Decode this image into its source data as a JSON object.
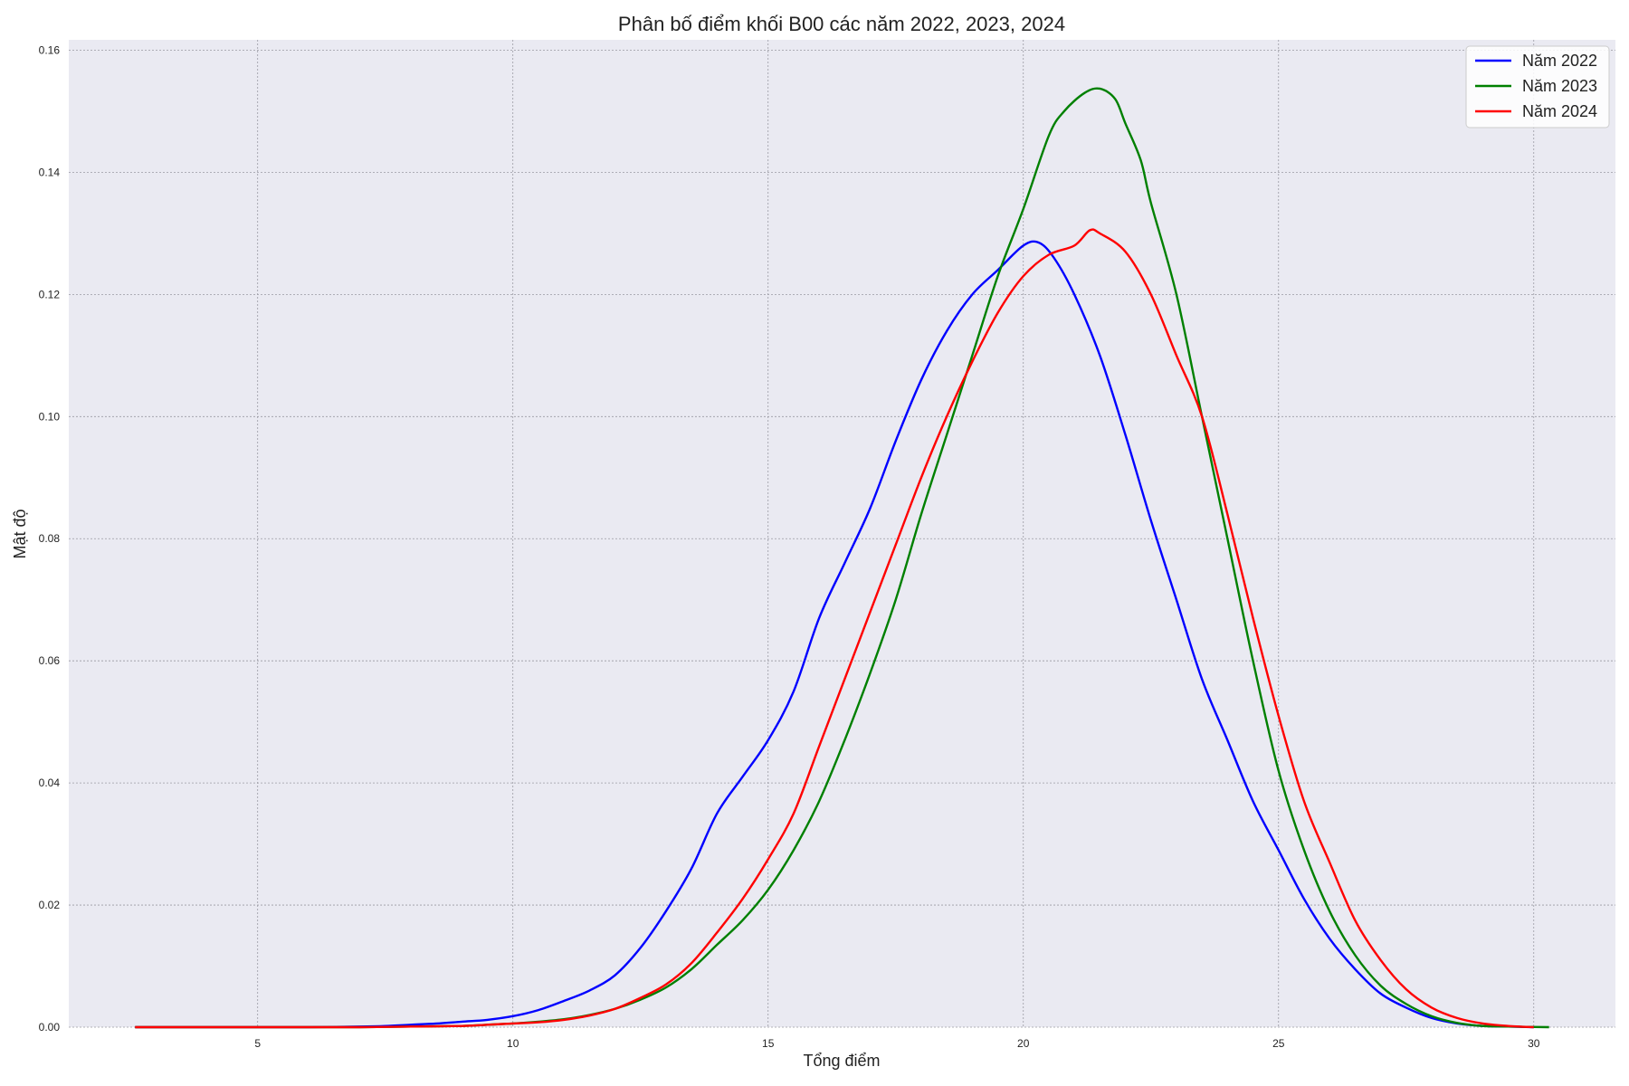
{
  "chart_data": {
    "type": "line",
    "title": "Phân bố điểm khối B00 các năm 2022, 2023, 2024",
    "xlabel": "Tổng điểm",
    "ylabel": "Mật độ",
    "xlim": [
      1.3,
      31.6
    ],
    "ylim": [
      0,
      0.1617
    ],
    "x_ticks": [
      5,
      10,
      15,
      20,
      25,
      30
    ],
    "y_ticks": [
      0.0,
      0.02,
      0.04,
      0.06,
      0.08,
      0.1,
      0.12,
      0.14,
      0.16
    ],
    "x_tick_labels": [
      "5",
      "10",
      "15",
      "20",
      "25",
      "30"
    ],
    "y_tick_labels": [
      "0.00",
      "0.02",
      "0.04",
      "0.06",
      "0.08",
      "0.10",
      "0.12",
      "0.14",
      "0.16"
    ],
    "grid": true,
    "background": "#eaeaf2",
    "legend_position": "top-right",
    "series": [
      {
        "name": "Năm 2022",
        "color": "#0000ff",
        "points": [
          [
            2.6,
            0
          ],
          [
            5,
            0
          ],
          [
            6,
            0
          ],
          [
            7,
            0.0001
          ],
          [
            7.5,
            0.0002
          ],
          [
            8,
            0.0004
          ],
          [
            8.5,
            0.0006
          ],
          [
            9,
            0.0009
          ],
          [
            9.5,
            0.0012
          ],
          [
            10,
            0.0018
          ],
          [
            10.5,
            0.0028
          ],
          [
            11,
            0.0043
          ],
          [
            11.5,
            0.006
          ],
          [
            12,
            0.0085
          ],
          [
            12.5,
            0.013
          ],
          [
            13,
            0.019
          ],
          [
            13.5,
            0.026
          ],
          [
            14,
            0.035
          ],
          [
            14.5,
            0.041
          ],
          [
            15,
            0.047
          ],
          [
            15.5,
            0.055
          ],
          [
            16,
            0.067
          ],
          [
            16.5,
            0.076
          ],
          [
            17,
            0.085
          ],
          [
            17.5,
            0.096
          ],
          [
            18,
            0.106
          ],
          [
            18.5,
            0.114
          ],
          [
            19,
            0.12
          ],
          [
            19.5,
            0.124
          ],
          [
            20,
            0.128
          ],
          [
            20.3,
            0.1285
          ],
          [
            20.6,
            0.126
          ],
          [
            21,
            0.12
          ],
          [
            21.5,
            0.11
          ],
          [
            22,
            0.097
          ],
          [
            22.5,
            0.083
          ],
          [
            23,
            0.07
          ],
          [
            23.5,
            0.057
          ],
          [
            24,
            0.047
          ],
          [
            24.5,
            0.037
          ],
          [
            25,
            0.029
          ],
          [
            25.5,
            0.021
          ],
          [
            26,
            0.0145
          ],
          [
            26.5,
            0.0095
          ],
          [
            27,
            0.0055
          ],
          [
            27.5,
            0.0032
          ],
          [
            28,
            0.0015
          ],
          [
            28.5,
            0.0006
          ],
          [
            29,
            0.0002
          ],
          [
            29.5,
            0.0001
          ],
          [
            30,
            0
          ]
        ]
      },
      {
        "name": "Năm 2023",
        "color": "#008000",
        "points": [
          [
            2.6,
            0
          ],
          [
            5,
            0
          ],
          [
            7,
            0
          ],
          [
            8,
            0.0001
          ],
          [
            9,
            0.0002
          ],
          [
            9.5,
            0.0004
          ],
          [
            10,
            0.0006
          ],
          [
            10.5,
            0.0009
          ],
          [
            11,
            0.0013
          ],
          [
            11.5,
            0.002
          ],
          [
            12,
            0.003
          ],
          [
            12.5,
            0.0045
          ],
          [
            13,
            0.0065
          ],
          [
            13.5,
            0.0095
          ],
          [
            14,
            0.0135
          ],
          [
            14.5,
            0.0175
          ],
          [
            15,
            0.0225
          ],
          [
            15.5,
            0.029
          ],
          [
            16,
            0.037
          ],
          [
            16.5,
            0.047
          ],
          [
            17,
            0.058
          ],
          [
            17.5,
            0.07
          ],
          [
            18,
            0.084
          ],
          [
            18.5,
            0.097
          ],
          [
            19,
            0.11
          ],
          [
            19.5,
            0.123
          ],
          [
            20,
            0.134
          ],
          [
            20.5,
            0.146
          ],
          [
            20.8,
            0.15
          ],
          [
            21.2,
            0.153
          ],
          [
            21.5,
            0.1537
          ],
          [
            21.8,
            0.152
          ],
          [
            22,
            0.148
          ],
          [
            22.3,
            0.142
          ],
          [
            22.5,
            0.135
          ],
          [
            23,
            0.12
          ],
          [
            23.5,
            0.1
          ],
          [
            24,
            0.08
          ],
          [
            24.5,
            0.06
          ],
          [
            25,
            0.042
          ],
          [
            25.5,
            0.029
          ],
          [
            26,
            0.019
          ],
          [
            26.5,
            0.0118
          ],
          [
            27,
            0.0068
          ],
          [
            27.5,
            0.0038
          ],
          [
            28,
            0.0018
          ],
          [
            28.5,
            0.0007
          ],
          [
            29,
            0.0002
          ],
          [
            29.5,
            0.0001
          ],
          [
            30.3,
            0
          ]
        ]
      },
      {
        "name": "Năm 2024",
        "color": "#ff0000",
        "points": [
          [
            2.6,
            0
          ],
          [
            5,
            0
          ],
          [
            7,
            0
          ],
          [
            8,
            0.0001
          ],
          [
            9,
            0.0002
          ],
          [
            9.5,
            0.0004
          ],
          [
            10,
            0.0006
          ],
          [
            10.5,
            0.0008
          ],
          [
            11,
            0.0012
          ],
          [
            11.5,
            0.0019
          ],
          [
            12,
            0.003
          ],
          [
            12.5,
            0.0048
          ],
          [
            13,
            0.007
          ],
          [
            13.5,
            0.0105
          ],
          [
            14,
            0.0155
          ],
          [
            14.5,
            0.021
          ],
          [
            15,
            0.0275
          ],
          [
            15.5,
            0.035
          ],
          [
            16,
            0.046
          ],
          [
            16.5,
            0.057
          ],
          [
            17,
            0.068
          ],
          [
            17.5,
            0.079
          ],
          [
            18,
            0.09
          ],
          [
            18.5,
            0.1
          ],
          [
            19,
            0.109
          ],
          [
            19.5,
            0.117
          ],
          [
            20,
            0.123
          ],
          [
            20.5,
            0.1265
          ],
          [
            21,
            0.128
          ],
          [
            21.3,
            0.1305
          ],
          [
            21.5,
            0.13
          ],
          [
            22,
            0.127
          ],
          [
            22.5,
            0.12
          ],
          [
            23,
            0.11
          ],
          [
            23.5,
            0.1
          ],
          [
            24,
            0.084
          ],
          [
            24.5,
            0.067
          ],
          [
            25,
            0.051
          ],
          [
            25.5,
            0.037
          ],
          [
            26,
            0.027
          ],
          [
            26.5,
            0.0175
          ],
          [
            27,
            0.011
          ],
          [
            27.5,
            0.0062
          ],
          [
            28,
            0.0032
          ],
          [
            28.5,
            0.0015
          ],
          [
            29,
            0.0006
          ],
          [
            29.5,
            0.0002
          ],
          [
            30,
            0
          ]
        ]
      }
    ]
  }
}
